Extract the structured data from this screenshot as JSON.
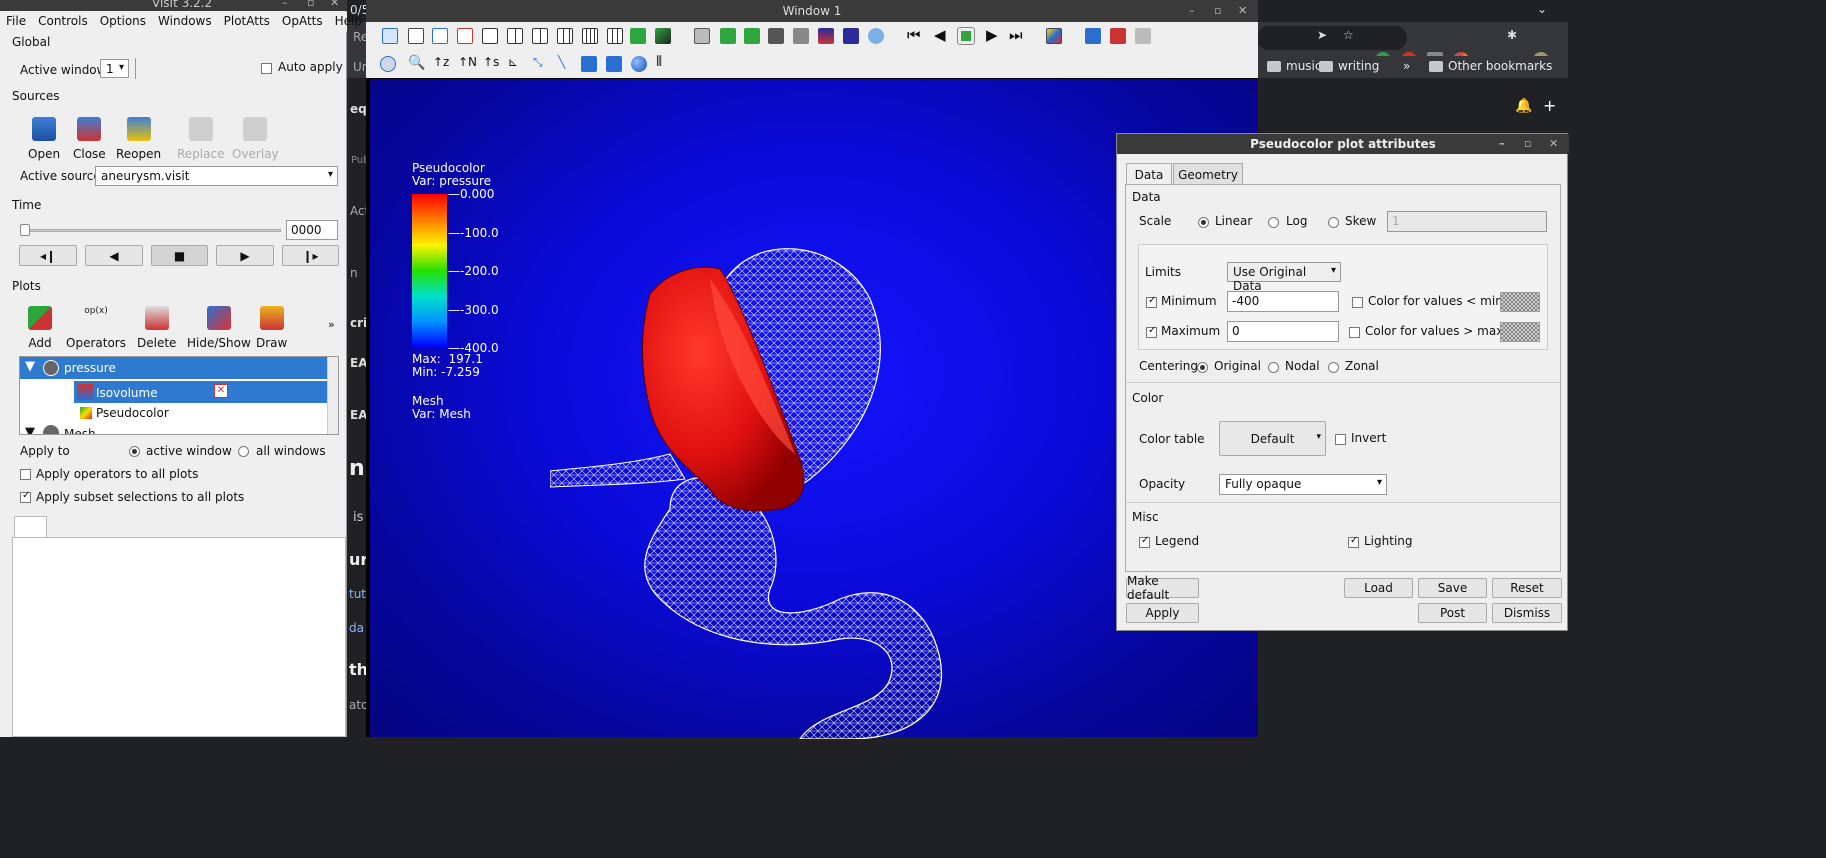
{
  "browser": {
    "tab_fragment": "0/5",
    "edge_texts": [
      "Re",
      "Un",
      "equ",
      "Pub",
      "Actio",
      "n",
      "crip",
      "EAD",
      "EAD",
      "n",
      "is",
      "uro",
      "tut",
      "da",
      "tho",
      "ator"
    ],
    "bookmarks": [
      "music",
      "writing",
      "»",
      "Other bookmarks"
    ]
  },
  "main": {
    "title": "VisIt 3.2.2",
    "menu": [
      "File",
      "Controls",
      "Options",
      "Windows",
      "PlotAtts",
      "OpAtts",
      "Help"
    ],
    "global_label": "Global",
    "active_window_label": "Active window",
    "active_window_value": "1",
    "auto_apply_label": "Auto apply",
    "sources_label": "Sources",
    "source_buttons": [
      "Open",
      "Close",
      "Reopen",
      "Replace",
      "Overlay"
    ],
    "active_source_label": "Active source",
    "active_source_value": "aneurysm.visit",
    "time_label": "Time",
    "time_value": "0000",
    "plots_label": "Plots",
    "plot_buttons": [
      "Add",
      "Operators",
      "Delete",
      "Hide/Show",
      "Draw"
    ],
    "more": "»",
    "plot_list": {
      "pressure": "pressure",
      "isovolume": "Isovolume",
      "pseudocolor": "Pseudocolor",
      "mesh": "Mesh"
    },
    "apply_to_label": "Apply to",
    "active_window_radio": "active window",
    "all_windows_radio": "all windows",
    "apply_ops_label": "Apply operators to all plots",
    "apply_subset_label": "Apply subset selections to all plots"
  },
  "win1": {
    "title": "Window 1",
    "legend": {
      "pc_title": "Pseudocolor",
      "pc_var": "Var: pressure",
      "ticks": [
        "0.000",
        "-100.0",
        "-200.0",
        "-300.0",
        "-400.0"
      ],
      "max": "Max:  197.1",
      "min": "Min: -7.259",
      "mesh_title": "Mesh",
      "mesh_var": "Var: Mesh"
    }
  },
  "attr": {
    "title": "Pseudocolor plot attributes",
    "tabs": [
      "Data",
      "Geometry"
    ],
    "data_label": "Data",
    "scale_label": "Scale",
    "scale_options": [
      "Linear",
      "Log",
      "Skew"
    ],
    "skew_value": "1",
    "limits_label": "Limits",
    "limits_value": "Use Original Data",
    "minimum_label": "Minimum",
    "minimum_value": "-400",
    "maximum_label": "Maximum",
    "maximum_value": "0",
    "color_min_label": "Color for values < min",
    "color_max_label": "Color for values > max",
    "centering_label": "Centering",
    "centering_options": [
      "Original",
      "Nodal",
      "Zonal"
    ],
    "color_label": "Color",
    "color_table_label": "Color table",
    "color_table_value": "Default",
    "invert_label": "Invert",
    "opacity_label": "Opacity",
    "opacity_value": "Fully opaque",
    "misc_label": "Misc",
    "legend_label": "Legend",
    "lighting_label": "Lighting",
    "buttons": {
      "make_default": "Make default",
      "load": "Load",
      "save": "Save",
      "reset": "Reset",
      "apply": "Apply",
      "post": "Post",
      "dismiss": "Dismiss"
    }
  }
}
